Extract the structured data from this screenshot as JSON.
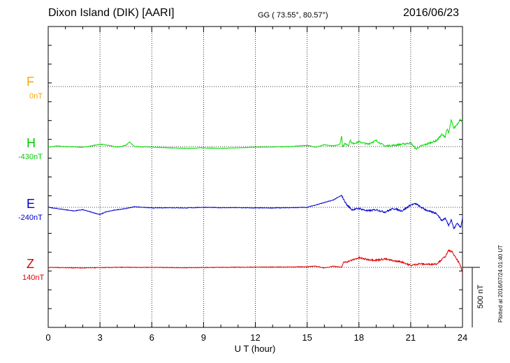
{
  "header": {
    "station": "Dixon Island (DIK)  [AARI]",
    "coords": "GG ( 73.55°,  80.57°)",
    "date": "2016/06/23"
  },
  "components": [
    {
      "letter": "F",
      "baseline": "0nT",
      "color": "#ffa500"
    },
    {
      "letter": "H",
      "baseline": "-430nT",
      "color": "#00cc00"
    },
    {
      "letter": "E",
      "baseline": "-240nT",
      "color": "#0000cc"
    },
    {
      "letter": "Z",
      "baseline": "140nT",
      "color": "#dd0000"
    }
  ],
  "scale_bar_label": "500 nT",
  "plotted_note": "Plotted at 2016/07/24 01:40 UT",
  "chart_data": {
    "type": "line",
    "title": "Dixon Island (DIK)  [AARI]",
    "xlabel": "U T (hour)",
    "ylabel": "",
    "xlim": [
      0,
      24
    ],
    "xticks": [
      "0",
      "3",
      "6",
      "9",
      "12",
      "15",
      "18",
      "21",
      "24"
    ],
    "grid": true,
    "scale_nT": 500,
    "series": [
      {
        "name": "H",
        "color": "#00dd00",
        "baseline_nT": -430,
        "x": [
          0,
          0.5,
          1,
          1.5,
          2,
          2.5,
          3,
          3.5,
          4,
          4.5,
          4.7,
          5,
          6,
          7,
          8,
          9,
          10,
          11,
          12,
          13,
          14,
          14.5,
          15,
          15.5,
          16,
          16.5,
          16.9,
          17,
          17.05,
          17.2,
          17.4,
          17.5,
          17.6,
          17.8,
          18,
          18.5,
          19,
          19.5,
          20,
          20.5,
          21,
          21.3,
          21.6,
          22,
          22.5,
          22.8,
          23,
          23.1,
          23.2,
          23.35,
          23.5,
          23.7,
          23.9,
          24
        ],
        "y": [
          -5,
          5,
          0,
          -3,
          -5,
          5,
          20,
          10,
          -5,
          10,
          40,
          0,
          -5,
          -10,
          -15,
          -10,
          -15,
          -10,
          -5,
          -3,
          0,
          5,
          10,
          -5,
          15,
          5,
          20,
          90,
          0,
          25,
          10,
          55,
          25,
          30,
          40,
          20,
          50,
          5,
          10,
          20,
          30,
          -20,
          5,
          25,
          50,
          100,
          80,
          150,
          110,
          220,
          150,
          190,
          230,
          200
        ]
      },
      {
        "name": "E",
        "color": "#0000cc",
        "baseline_nT": -240,
        "x": [
          0,
          0.5,
          1,
          1.5,
          2,
          2.5,
          3,
          3.3,
          3.6,
          4,
          4.5,
          5,
          5.5,
          6,
          7,
          8,
          9,
          10,
          11,
          12,
          13,
          14,
          15,
          15.5,
          16,
          16.5,
          17,
          17.1,
          17.3,
          17.6,
          18,
          18.5,
          19,
          19.5,
          20,
          20.5,
          21,
          21.3,
          21.6,
          22,
          22.5,
          22.8,
          23,
          23.2,
          23.35,
          23.5,
          23.7,
          23.9,
          24
        ],
        "y": [
          0,
          -10,
          -20,
          -30,
          -20,
          -40,
          -60,
          -40,
          -30,
          -20,
          -10,
          5,
          0,
          -5,
          -3,
          -5,
          0,
          -3,
          -3,
          -5,
          -5,
          -3,
          0,
          20,
          40,
          60,
          100,
          70,
          20,
          -20,
          -10,
          -30,
          -20,
          -40,
          -10,
          -30,
          20,
          30,
          0,
          -30,
          -50,
          -110,
          -90,
          -150,
          -100,
          -180,
          -130,
          -170,
          -90
        ]
      },
      {
        "name": "Z",
        "color": "#dd0000",
        "baseline_nT": 140,
        "x": [
          0,
          2,
          4,
          6,
          8,
          10,
          12,
          14,
          15,
          15.5,
          16,
          16.5,
          17,
          17.1,
          17.5,
          18,
          18.5,
          19,
          19.5,
          20,
          20.5,
          21,
          21.5,
          22,
          22.5,
          23,
          23.2,
          23.4,
          23.6,
          23.8,
          24
        ],
        "y": [
          0,
          -5,
          0,
          0,
          -3,
          0,
          2,
          3,
          5,
          10,
          -5,
          10,
          0,
          40,
          55,
          80,
          65,
          60,
          70,
          55,
          45,
          15,
          30,
          25,
          30,
          90,
          140,
          130,
          80,
          40,
          -40
        ]
      }
    ]
  }
}
